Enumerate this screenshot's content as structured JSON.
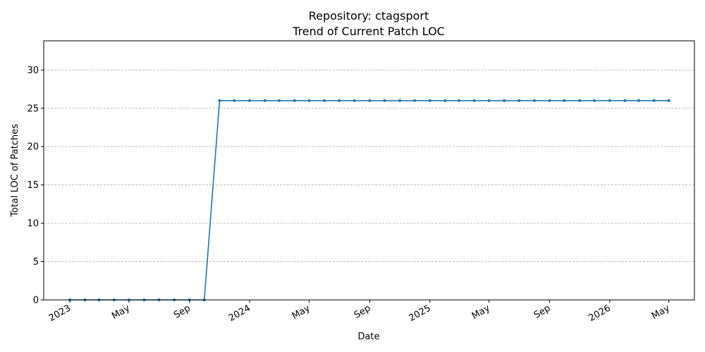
{
  "chart_data": {
    "type": "line",
    "title": "Repository: ctagsport",
    "subtitle": "Trend of Current Patch LOC",
    "xlabel": "Date",
    "ylabel": "Total LOC of Patches",
    "ylim": [
      0,
      33.8
    ],
    "yticks": [
      0,
      5,
      10,
      15,
      20,
      25,
      30
    ],
    "xlim": [
      "2022-11-09",
      "2026-06-22"
    ],
    "xticks": [
      {
        "date": "2023-01-01",
        "label": "2023"
      },
      {
        "date": "2023-05-01",
        "label": "May"
      },
      {
        "date": "2023-09-01",
        "label": "Sep"
      },
      {
        "date": "2024-01-01",
        "label": "2024"
      },
      {
        "date": "2024-05-01",
        "label": "May"
      },
      {
        "date": "2024-09-01",
        "label": "Sep"
      },
      {
        "date": "2025-01-01",
        "label": "2025"
      },
      {
        "date": "2025-05-01",
        "label": "May"
      },
      {
        "date": "2025-09-01",
        "label": "Sep"
      },
      {
        "date": "2026-01-01",
        "label": "2026"
      },
      {
        "date": "2026-05-01",
        "label": "May"
      }
    ],
    "grid": "y-dashed",
    "color": "#1f77b4",
    "x": [
      "2023-01-01",
      "2023-02-01",
      "2023-03-01",
      "2023-04-01",
      "2023-05-01",
      "2023-06-01",
      "2023-07-01",
      "2023-08-01",
      "2023-09-01",
      "2023-10-01",
      "2023-11-01",
      "2023-12-01",
      "2024-01-01",
      "2024-02-01",
      "2024-03-01",
      "2024-04-01",
      "2024-05-01",
      "2024-06-01",
      "2024-07-01",
      "2024-08-01",
      "2024-09-01",
      "2024-10-01",
      "2024-11-01",
      "2024-12-01",
      "2025-01-01",
      "2025-02-01",
      "2025-03-01",
      "2025-04-01",
      "2025-05-01",
      "2025-06-01",
      "2025-07-01",
      "2025-08-01",
      "2025-09-01",
      "2025-10-01",
      "2025-11-01",
      "2025-12-01",
      "2026-01-01",
      "2026-02-01",
      "2026-03-01",
      "2026-04-01",
      "2026-05-01"
    ],
    "y": [
      0,
      0,
      0,
      0,
      0,
      0,
      0,
      0,
      0,
      0,
      26,
      26,
      26,
      26,
      26,
      26,
      26,
      26,
      26,
      26,
      26,
      26,
      26,
      26,
      26,
      26,
      26,
      26,
      26,
      26,
      26,
      26,
      26,
      26,
      26,
      26,
      26,
      26,
      26,
      26,
      26
    ]
  }
}
